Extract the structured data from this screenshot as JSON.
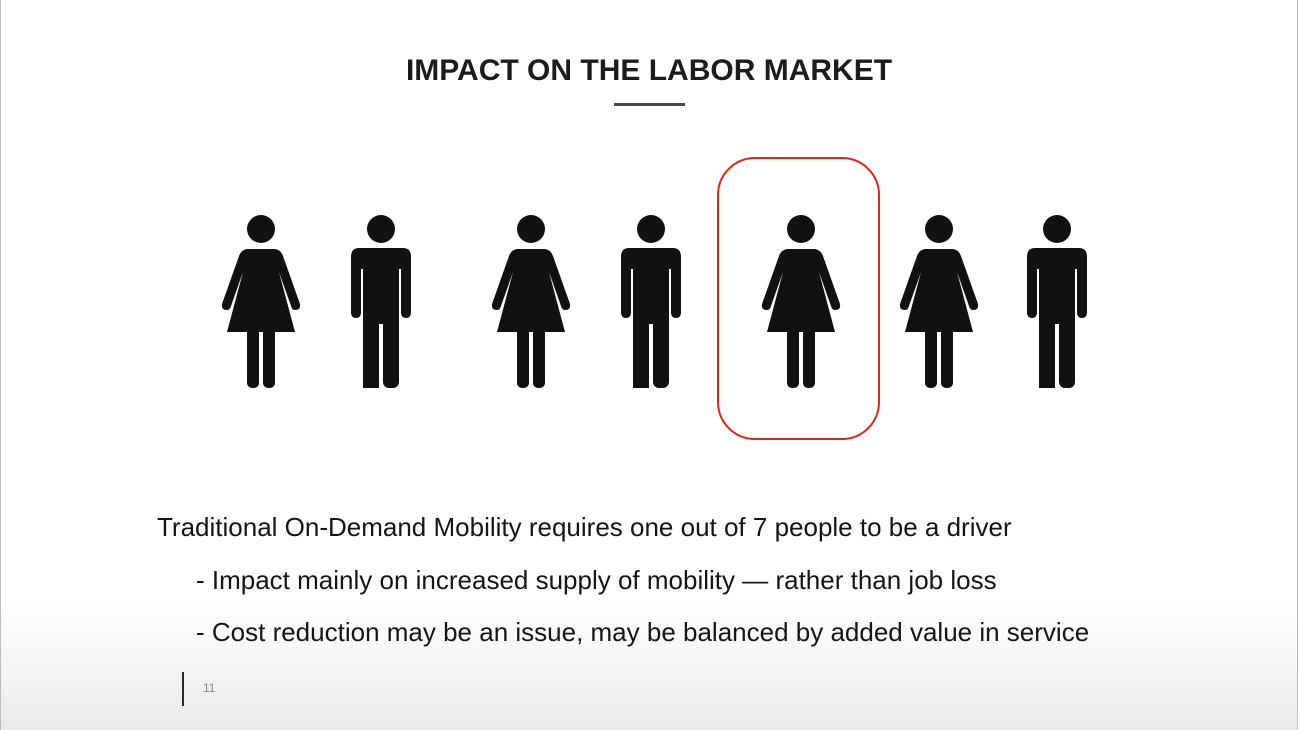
{
  "slide": {
    "title": "IMPACT ON THE LABOR MARKET",
    "main_text": "Traditional On-Demand Mobility requires one out of 7 people to be a driver",
    "bullets": [
      "- Impact mainly on increased supply of mobility — rather than job loss",
      "- Cost reduction may be an issue, may be balanced by added value in service"
    ],
    "page_number": "11"
  },
  "people": [
    {
      "icon": "woman-icon",
      "highlighted": false
    },
    {
      "icon": "man-icon",
      "highlighted": false
    },
    {
      "icon": "woman-icon",
      "highlighted": false
    },
    {
      "icon": "man-icon",
      "highlighted": false
    },
    {
      "icon": "woman-icon",
      "highlighted": true
    },
    {
      "icon": "woman-icon",
      "highlighted": false
    },
    {
      "icon": "man-icon",
      "highlighted": false
    }
  ],
  "colors": {
    "icon": "#111111",
    "highlight": "#d9281c",
    "text": "#151515"
  }
}
